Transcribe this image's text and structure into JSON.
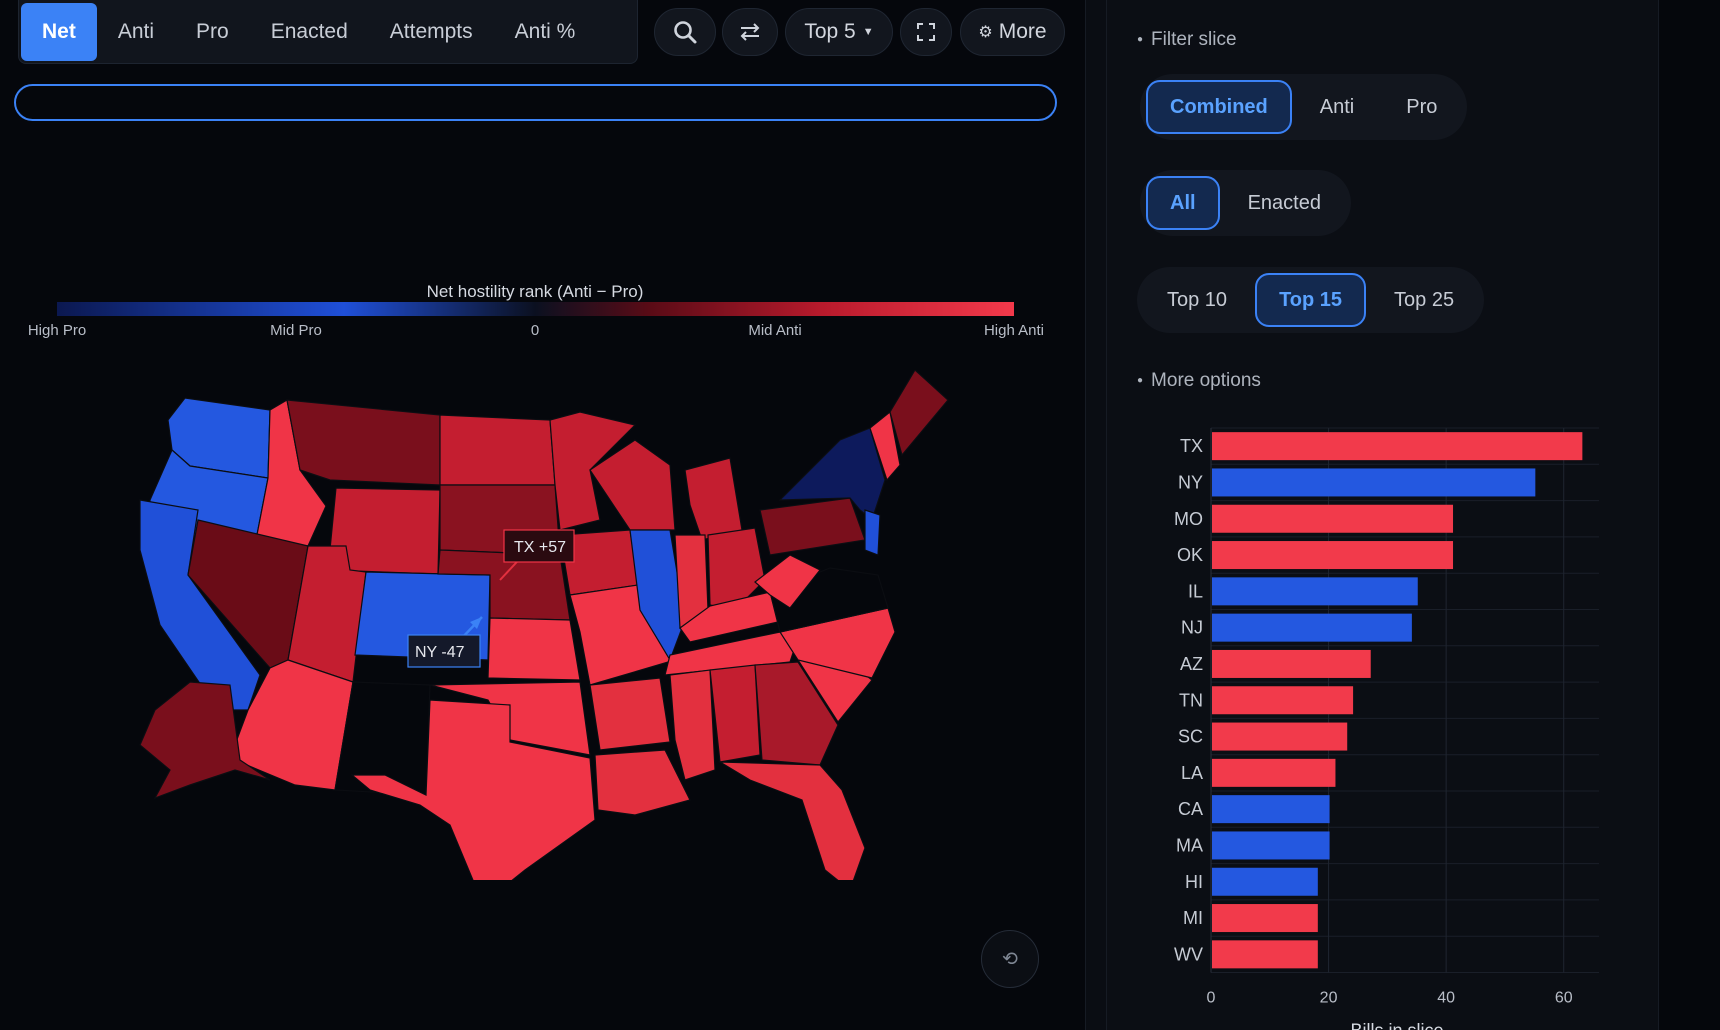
{
  "tabs": [
    {
      "label": "Net",
      "active": true
    },
    {
      "label": "Anti",
      "active": false
    },
    {
      "label": "Pro",
      "active": false
    },
    {
      "label": "Enacted",
      "active": false
    },
    {
      "label": "Attempts",
      "active": false
    },
    {
      "label": "Anti %",
      "active": false
    }
  ],
  "toolbar": {
    "top_label": "Top 5",
    "more_label": "More"
  },
  "search": {
    "value": "",
    "placeholder": ""
  },
  "legend": {
    "title": "Net hostility rank (Anti − Pro)",
    "ticks": [
      "High Pro",
      "Mid Pro",
      "0",
      "Mid Anti",
      "High Anti"
    ]
  },
  "map": {
    "callouts": [
      {
        "label": "TX +57"
      },
      {
        "label": "NY -47"
      }
    ]
  },
  "filters": {
    "filter_slice_label": "Filter slice",
    "slice": [
      "Combined",
      "Anti",
      "Pro"
    ],
    "slice_selected": "Combined",
    "status": [
      "All",
      "Enacted"
    ],
    "status_selected": "All",
    "top": [
      "Top 10",
      "Top 15",
      "Top 25"
    ],
    "top_selected": "Top 15",
    "more_options_label": "More options"
  },
  "colors": {
    "anti": "#f23a4b",
    "pro": "#2458e0",
    "accent": "#3b82f6"
  },
  "chart_data": {
    "type": "bar",
    "orientation": "horizontal",
    "categories": [
      "TX",
      "NY",
      "MO",
      "OK",
      "IL",
      "NJ",
      "AZ",
      "TN",
      "SC",
      "LA",
      "CA",
      "MA",
      "HI",
      "MI",
      "WV"
    ],
    "values": [
      63,
      55,
      41,
      41,
      35,
      34,
      27,
      24,
      23,
      21,
      20,
      20,
      18,
      18,
      18
    ],
    "bar_side": [
      "anti",
      "pro",
      "anti",
      "anti",
      "pro",
      "pro",
      "anti",
      "anti",
      "anti",
      "anti",
      "pro",
      "pro",
      "pro",
      "anti",
      "anti"
    ],
    "xlabel": "Bills in slice",
    "xticks": [
      0,
      20,
      40,
      60
    ],
    "xlim": [
      0,
      66
    ],
    "grid": true
  }
}
